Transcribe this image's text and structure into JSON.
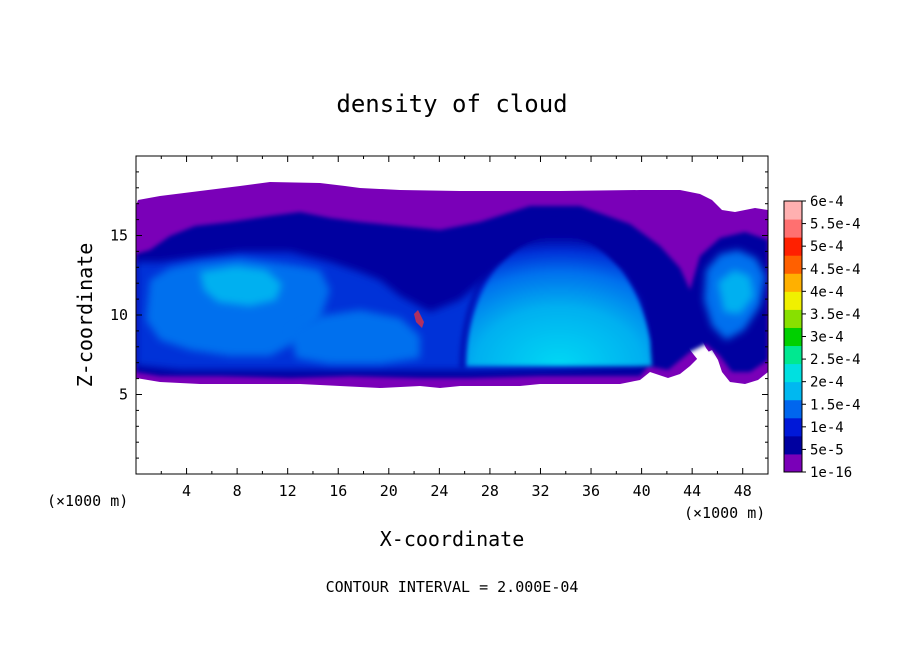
{
  "chart_data": {
    "type": "heatmap",
    "title": "density of cloud",
    "xlabel": "X-coordinate",
    "ylabel": "Z-coordinate",
    "x_unit_left": "(×1000 m)",
    "x_unit_right": "(×1000 m)",
    "footer": "CONTOUR INTERVAL = 2.000E-04",
    "xlim": [
      0,
      50
    ],
    "ylim": [
      0,
      20
    ],
    "x_ticks": [
      4,
      8,
      12,
      16,
      20,
      24,
      28,
      32,
      36,
      40,
      44,
      48
    ],
    "y_ticks": [
      5,
      10,
      15
    ],
    "colorbar": {
      "labels": [
        "1e-16",
        "5e-5",
        "1e-4",
        "1.5e-4",
        "2e-4",
        "2.5e-4",
        "3e-4",
        "3.5e-4",
        "4e-4",
        "4.5e-4",
        "5e-4",
        "5.5e-4",
        "6e-4"
      ],
      "colors": [
        "#7a00b8",
        "#0000a0",
        "#0018d8",
        "#0066ee",
        "#00b8f0",
        "#00e0e0",
        "#00e890",
        "#00d000",
        "#88e000",
        "#f0f000",
        "#ffb000",
        "#ff6000",
        "#ff2000",
        "#ff7070",
        "#ffb0b0"
      ]
    },
    "cloud": {
      "top_km": 17.5,
      "bottom_km": 6.0,
      "dome_center_km": [
        32,
        6.5
      ],
      "dome_radius_km": [
        8.5,
        9.0
      ],
      "core_max": "2e-4"
    }
  }
}
